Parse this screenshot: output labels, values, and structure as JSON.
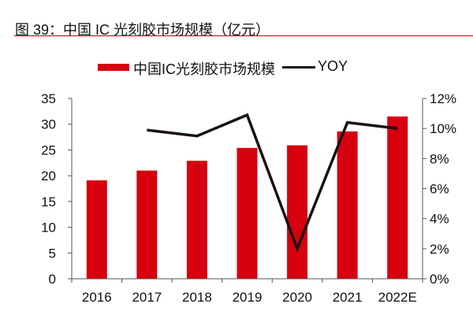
{
  "chart_data": {
    "type": "bar+line",
    "title": "图 39：中国 IC 光刻胶市场规模（亿元）",
    "categories": [
      "2016",
      "2017",
      "2018",
      "2019",
      "2020",
      "2021",
      "2022E"
    ],
    "series": [
      {
        "name": "中国IC光刻胶市场规模",
        "type": "bar",
        "axis": "left",
        "color": "#d7000f",
        "values": [
          19.1,
          21.0,
          22.9,
          25.4,
          25.9,
          28.6,
          31.5
        ]
      },
      {
        "name": "YOY",
        "type": "line",
        "axis": "right",
        "color": "#1a1210",
        "values": [
          null,
          9.9,
          9.5,
          10.9,
          2.0,
          10.4,
          10.0
        ]
      }
    ],
    "left_axis": {
      "range": [
        0,
        35
      ],
      "ticks": [
        "0",
        "5",
        "10",
        "15",
        "20",
        "25",
        "30",
        "35"
      ]
    },
    "right_axis": {
      "range": [
        0,
        12
      ],
      "unit": "%",
      "ticks": [
        "0%",
        "2%",
        "4%",
        "6%",
        "8%",
        "10%",
        "12%"
      ]
    },
    "grid": false,
    "legend_position": "top"
  }
}
